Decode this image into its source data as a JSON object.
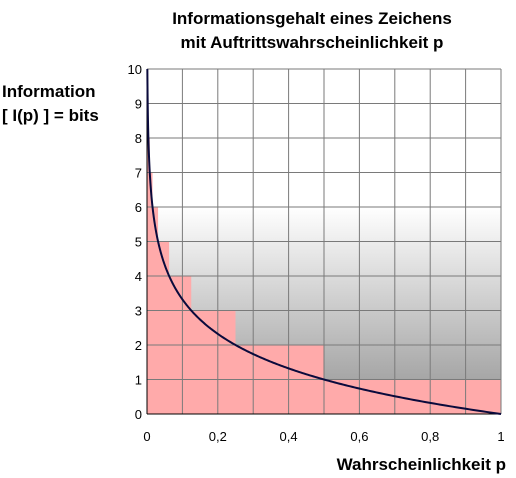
{
  "chart_data": {
    "type": "line",
    "title": [
      "Informationsgehalt eines Zeichens",
      "mit Auftrittswahrscheinlichkeit p"
    ],
    "ylabel": [
      "Information",
      "[ I(p) ] = bits"
    ],
    "xlabel": "Wahrscheinlichkeit p",
    "xlim": [
      0,
      1
    ],
    "ylim": [
      0,
      10
    ],
    "grid": true,
    "x_ticks": [
      0,
      0.1,
      0.2,
      0.3,
      0.4,
      0.5,
      0.6,
      0.7,
      0.8,
      0.9,
      1.0
    ],
    "x_tick_labels": [
      "0",
      "",
      "0,2",
      "",
      "0,4",
      "",
      "0,6",
      "",
      "0,8",
      "",
      "1"
    ],
    "y_ticks": [
      0,
      1,
      2,
      3,
      4,
      5,
      6,
      7,
      8,
      9,
      10
    ],
    "y_tick_labels": [
      "0",
      "1",
      "2",
      "3",
      "4",
      "5",
      "6",
      "7",
      "8",
      "9",
      "10"
    ],
    "curve": {
      "function": "I(p) = -log2(p)",
      "x": [
        0.001,
        0.002,
        0.004,
        0.008,
        0.016,
        0.03125,
        0.0625,
        0.125,
        0.25,
        0.5,
        0.75,
        1.0
      ],
      "y": [
        9.97,
        8.97,
        7.97,
        6.97,
        5.97,
        5.0,
        4.0,
        3.0,
        2.0,
        1.0,
        0.415,
        0.0
      ],
      "color": "#0a0a3c"
    },
    "steps": {
      "color": "#ffaaaa",
      "bars": [
        {
          "x0": 0,
          "x1": 0.5,
          "y": 2
        },
        {
          "x0": 0.5,
          "x1": 1.0,
          "y": 1
        },
        {
          "x0": 0,
          "x1": 0.25,
          "y": 3
        },
        {
          "x0": 0,
          "x1": 0.125,
          "y": 4
        },
        {
          "x0": 0,
          "x1": 0.0625,
          "y": 5
        },
        {
          "x0": 0,
          "x1": 0.03125,
          "y": 6
        },
        {
          "x0": 0,
          "x1": 0.015625,
          "y": 7
        },
        {
          "x0": 0,
          "x1": 0.0078125,
          "y": 8
        }
      ]
    },
    "background": {
      "gradient_top": "#ffffff",
      "gradient_bottom": "#a6a6a6",
      "gradient_from_y": 6,
      "gradient_to_y": 1
    },
    "grid_color": "#7a7a7a"
  }
}
